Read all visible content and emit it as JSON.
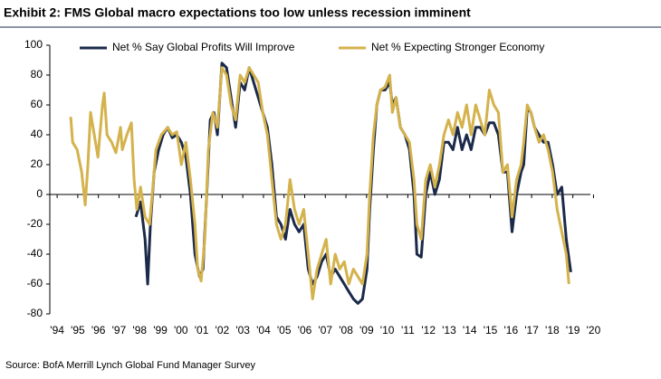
{
  "chart_data": {
    "type": "line",
    "title": "Exhibit 2: FMS Global macro expectations too low unless recession imminent",
    "source": "Source: BofA Merrill Lynch Global Fund Manager Survey",
    "legend": "top",
    "xlim": [
      1993.6,
      2020.2
    ],
    "xticks": [
      {
        "value": 1994,
        "label": "'94"
      },
      {
        "value": 1995,
        "label": "'95"
      },
      {
        "value": 1996,
        "label": "'96"
      },
      {
        "value": 1997,
        "label": "'97"
      },
      {
        "value": 1998,
        "label": "'98"
      },
      {
        "value": 1999,
        "label": "'99"
      },
      {
        "value": 2000,
        "label": "'00"
      },
      {
        "value": 2001,
        "label": "'01"
      },
      {
        "value": 2002,
        "label": "'02"
      },
      {
        "value": 2003,
        "label": "'03"
      },
      {
        "value": 2004,
        "label": "'04"
      },
      {
        "value": 2005,
        "label": "'05"
      },
      {
        "value": 2006,
        "label": "'06"
      },
      {
        "value": 2007,
        "label": "'07"
      },
      {
        "value": 2008,
        "label": "'08"
      },
      {
        "value": 2009,
        "label": "'09"
      },
      {
        "value": 2010,
        "label": "'10"
      },
      {
        "value": 2011,
        "label": "'11"
      },
      {
        "value": 2012,
        "label": "'12"
      },
      {
        "value": 2013,
        "label": "'13"
      },
      {
        "value": 2014,
        "label": "'14"
      },
      {
        "value": 2015,
        "label": "'15"
      },
      {
        "value": 2016,
        "label": "'16"
      },
      {
        "value": 2017,
        "label": "'17"
      },
      {
        "value": 2018,
        "label": "'18"
      },
      {
        "value": 2019,
        "label": "'19"
      },
      {
        "value": 2020,
        "label": "'20"
      }
    ],
    "ylim": [
      -80,
      100
    ],
    "yticks": [
      -80,
      -60,
      -40,
      -20,
      0,
      20,
      40,
      60,
      80,
      100
    ],
    "series": [
      {
        "name": "Net % Say Global Profits Will Improve",
        "color": "#1b2a4a",
        "x": [
          1997.82,
          1998.04,
          1998.26,
          1998.39,
          1998.52,
          1998.7,
          1998.92,
          1999.14,
          1999.36,
          1999.58,
          1999.8,
          2000.02,
          2000.24,
          2000.46,
          2000.68,
          2000.9,
          2001.07,
          2001.25,
          2001.42,
          2001.6,
          2001.77,
          2001.99,
          2002.21,
          2002.43,
          2002.65,
          2002.87,
          2003.09,
          2003.31,
          2003.53,
          2003.75,
          2003.97,
          2004.19,
          2004.41,
          2004.63,
          2004.85,
          2005.07,
          2005.29,
          2005.51,
          2005.73,
          2005.95,
          2006.17,
          2006.38,
          2006.6,
          2006.82,
          2007.04,
          2007.26,
          2007.48,
          2007.7,
          2007.92,
          2008.14,
          2008.36,
          2008.58,
          2008.8,
          2009.02,
          2009.15,
          2009.33,
          2009.5,
          2009.68,
          2009.9,
          2010.12,
          2010.25,
          2010.43,
          2010.64,
          2010.86,
          2011.08,
          2011.3,
          2011.44,
          2011.65,
          2011.87,
          2012.09,
          2012.31,
          2012.53,
          2012.75,
          2012.97,
          2013.19,
          2013.41,
          2013.63,
          2013.85,
          2014.07,
          2014.29,
          2014.51,
          2014.73,
          2014.95,
          2015.17,
          2015.39,
          2015.61,
          2015.83,
          2016.05,
          2016.27,
          2016.49,
          2016.62,
          2016.79,
          2016.97,
          2017.14,
          2017.36,
          2017.58,
          2017.8,
          2018.02,
          2018.24,
          2018.46,
          2018.68,
          2018.9
        ],
        "values": [
          -15,
          -5,
          -30,
          -60,
          -20,
          15,
          30,
          40,
          45,
          38,
          40,
          35,
          25,
          0,
          -40,
          -55,
          -50,
          0,
          50,
          55,
          40,
          88,
          85,
          65,
          45,
          75,
          70,
          85,
          75,
          65,
          55,
          45,
          20,
          -15,
          -20,
          -30,
          -10,
          -20,
          -25,
          -20,
          -50,
          -60,
          -55,
          -45,
          -40,
          -55,
          -50,
          -55,
          -60,
          -65,
          -70,
          -73,
          -70,
          -50,
          -10,
          30,
          60,
          70,
          70,
          75,
          60,
          65,
          45,
          40,
          30,
          0,
          -40,
          -42,
          0,
          15,
          0,
          10,
          35,
          35,
          30,
          45,
          30,
          40,
          30,
          45,
          45,
          40,
          48,
          48,
          40,
          15,
          15,
          -25,
          0,
          15,
          20,
          58,
          55,
          45,
          40,
          35,
          35,
          20,
          0,
          5,
          -30,
          -52
        ]
      },
      {
        "name": "Net % Expecting Stronger Economy",
        "color": "#d4b24c",
        "x": [
          1994.66,
          1994.75,
          1994.97,
          1995.19,
          1995.36,
          1995.49,
          1995.62,
          1995.8,
          1995.98,
          1996.2,
          1996.28,
          1996.42,
          1996.64,
          1996.85,
          1997.07,
          1997.16,
          1997.38,
          1997.6,
          1997.73,
          1997.86,
          1998.04,
          1998.26,
          1998.48,
          1998.61,
          1998.79,
          1999.05,
          1999.36,
          1999.58,
          1999.8,
          2000.02,
          2000.24,
          2000.46,
          2000.68,
          2000.81,
          2000.98,
          2001.16,
          2001.33,
          2001.55,
          2001.77,
          2001.99,
          2002.21,
          2002.43,
          2002.65,
          2002.87,
          2003.09,
          2003.31,
          2003.53,
          2003.75,
          2003.97,
          2004.19,
          2004.41,
          2004.63,
          2004.85,
          2005.07,
          2005.29,
          2005.51,
          2005.73,
          2005.95,
          2006.17,
          2006.38,
          2006.6,
          2006.82,
          2007.04,
          2007.26,
          2007.48,
          2007.7,
          2007.92,
          2008.14,
          2008.36,
          2008.58,
          2008.8,
          2009.02,
          2009.15,
          2009.33,
          2009.5,
          2009.68,
          2009.9,
          2010.12,
          2010.25,
          2010.43,
          2010.64,
          2010.86,
          2011.08,
          2011.3,
          2011.44,
          2011.65,
          2011.87,
          2012.09,
          2012.31,
          2012.53,
          2012.75,
          2012.97,
          2013.19,
          2013.41,
          2013.63,
          2013.85,
          2014.07,
          2014.29,
          2014.51,
          2014.73,
          2014.95,
          2015.17,
          2015.39,
          2015.61,
          2015.83,
          2016.05,
          2016.27,
          2016.49,
          2016.62,
          2016.79,
          2016.97,
          2017.14,
          2017.36,
          2017.58,
          2017.8,
          2018.02,
          2018.24,
          2018.46,
          2018.68,
          2018.81
        ],
        "values": [
          52,
          35,
          30,
          15,
          -7,
          20,
          55,
          40,
          25,
          60,
          68,
          40,
          35,
          28,
          45,
          30,
          40,
          48,
          10,
          -10,
          5,
          -15,
          -20,
          0,
          30,
          40,
          45,
          40,
          42,
          20,
          35,
          10,
          -20,
          -50,
          -58,
          -30,
          30,
          55,
          45,
          85,
          80,
          60,
          50,
          80,
          75,
          85,
          80,
          75,
          55,
          40,
          10,
          -20,
          -30,
          -20,
          10,
          -10,
          -20,
          -10,
          -40,
          -70,
          -50,
          -40,
          -30,
          -60,
          -40,
          -50,
          -45,
          -60,
          -50,
          -55,
          -60,
          -40,
          0,
          40,
          60,
          70,
          72,
          80,
          55,
          65,
          45,
          40,
          35,
          10,
          -20,
          -30,
          10,
          20,
          5,
          20,
          40,
          50,
          40,
          55,
          45,
          60,
          40,
          60,
          50,
          40,
          70,
          60,
          55,
          15,
          20,
          -15,
          10,
          20,
          35,
          60,
          55,
          45,
          35,
          40,
          30,
          15,
          -10,
          -25,
          -40,
          -60
        ]
      }
    ]
  }
}
